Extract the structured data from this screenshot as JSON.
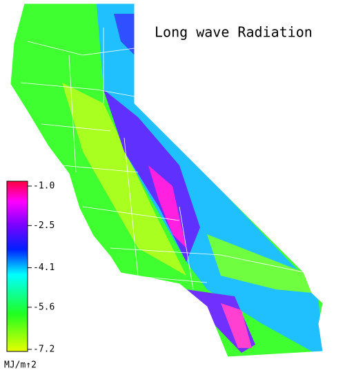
{
  "title": "Long wave Radiation",
  "colorbar": {
    "lim": [
      -7.2,
      -1
    ],
    "ticks": [
      {
        "value": -1,
        "label": "-1.0"
      },
      -2.5,
      -4.1,
      -5.6,
      -7.2
    ],
    "unit": "MJ/m↑2"
  }
}
